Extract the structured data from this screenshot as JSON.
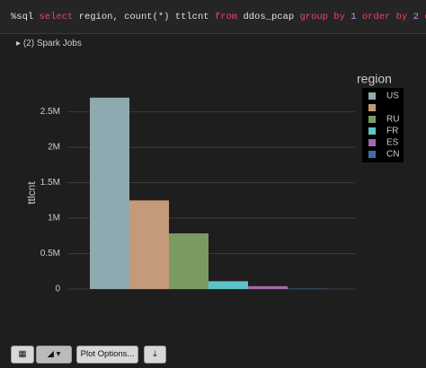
{
  "code": [
    "%sql",
    "select",
    "region, count(*) ttlcnt",
    "from",
    "ddos_pcap",
    "group by",
    "1",
    "order by",
    "2",
    "desc"
  ],
  "jobs": "(2) Spark Jobs",
  "plot_options": "Plot Options...",
  "chart_data": {
    "type": "bar",
    "y_label": "ttlcnt",
    "legend_title": "region",
    "legend": "right",
    "categories": [
      "US",
      null,
      "RU",
      "FR",
      "ES",
      "CN"
    ],
    "values": [
      2700000,
      1250000,
      785000,
      110000,
      40000,
      6000
    ],
    "colors": [
      "#8fa9b0",
      "#c49a7a",
      "#7a9a62",
      "#5cc4c8",
      "#a568a8",
      "#3f6fa8"
    ],
    "ylim": [
      0,
      2900000
    ],
    "yticks": [
      0,
      {
        "value": 500000,
        "label": "0.5M"
      },
      {
        "value": 1000000,
        "label": "1M"
      },
      {
        "value": 1500000,
        "label": "1.5M"
      },
      {
        "value": 2000000,
        "label": "2M"
      },
      {
        "value": 2500000,
        "label": "2.5M"
      }
    ],
    "grid": true
  }
}
